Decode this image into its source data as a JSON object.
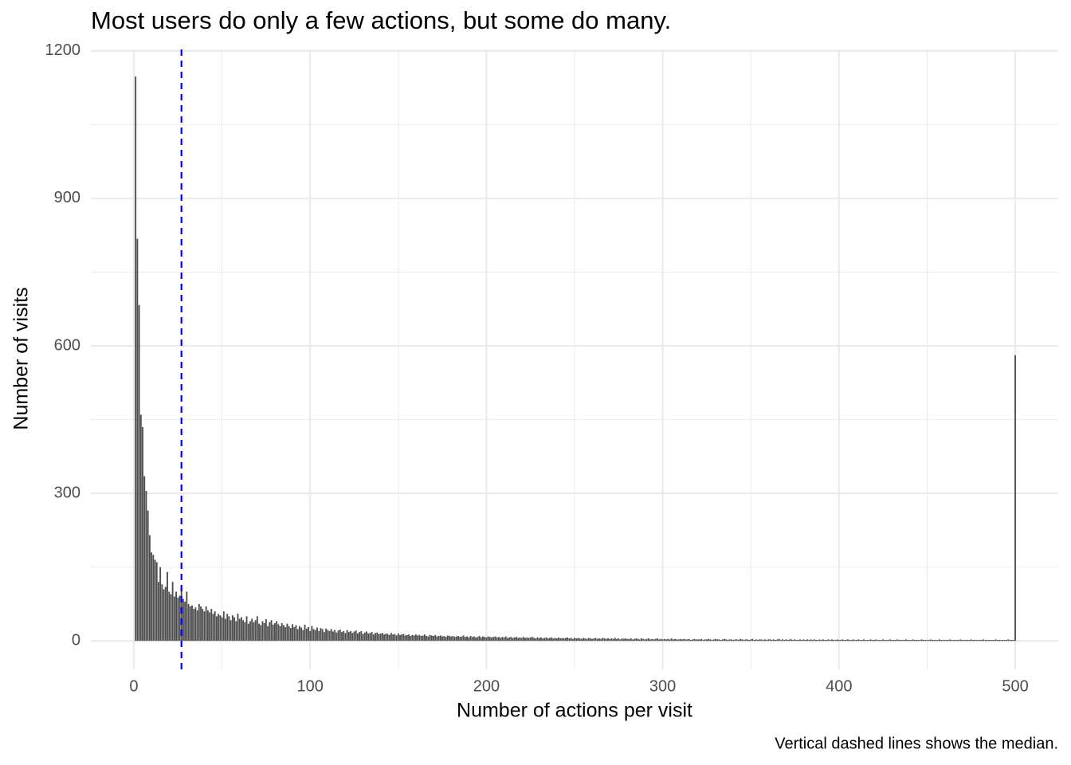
{
  "chart_data": {
    "type": "histogram",
    "title": "Most users do only a few actions, but some do many.",
    "xlabel": "Number of actions per visit",
    "ylabel": "Number of visits",
    "caption": "Vertical dashed lines shows the median.",
    "color": "#4d4d4d",
    "median": 27,
    "median_color": "#0000ff",
    "xlim": [
      -24.4,
      524.4
    ],
    "ylim": [
      -58,
      1203
    ],
    "xticks": [
      0,
      100,
      200,
      300,
      400,
      500
    ],
    "yticks": [
      0,
      300,
      600,
      900,
      1200
    ],
    "xminor": [
      50,
      150,
      250,
      350,
      450
    ],
    "yminor": [
      150,
      450,
      750,
      1050
    ],
    "grid": true,
    "bins": [
      0.5,
      1.5,
      2.5,
      3.5,
      4.5,
      5.5,
      6.5,
      7.5,
      8.5,
      9.5,
      10.5,
      11.5,
      12.5,
      13.5,
      14.5,
      15.5,
      16.5,
      17.5,
      18.5,
      19.5,
      20.5,
      21.5,
      22.5,
      23.5,
      24.5,
      25.5,
      26.5,
      27.5,
      28.5,
      29.5,
      30.5,
      31.5,
      32.5,
      33.5,
      34.5,
      35.5,
      36.5,
      37.5,
      38.5,
      39.5,
      40.5,
      41.5,
      42.5,
      43.5,
      44.5,
      45.5,
      46.5,
      47.5,
      48.5,
      49.5,
      50.5,
      51.5,
      52.5,
      53.5,
      54.5,
      55.5,
      56.5,
      57.5,
      58.5,
      59.5,
      60.5,
      61.5,
      62.5,
      63.5,
      64.5,
      65.5,
      66.5,
      67.5,
      68.5,
      69.5,
      70.5,
      71.5,
      72.5,
      73.5,
      74.5,
      75.5,
      76.5,
      77.5,
      78.5,
      79.5,
      80.5,
      81.5,
      82.5,
      83.5,
      84.5,
      85.5,
      86.5,
      87.5,
      88.5,
      89.5,
      90.5,
      91.5,
      92.5,
      93.5,
      94.5,
      95.5,
      96.5,
      97.5,
      98.5,
      99.5,
      100.5,
      101.5,
      102.5,
      103.5,
      104.5,
      105.5,
      106.5,
      107.5,
      108.5,
      109.5,
      110.5,
      111.5,
      112.5,
      113.5,
      114.5,
      115.5,
      116.5,
      117.5,
      118.5,
      119.5,
      120.5,
      121.5,
      122.5,
      123.5,
      124.5,
      125.5,
      126.5,
      127.5,
      128.5,
      129.5,
      130.5,
      131.5,
      132.5,
      133.5,
      134.5,
      135.5,
      136.5,
      137.5,
      138.5,
      139.5,
      140.5,
      141.5,
      142.5,
      143.5,
      144.5,
      145.5,
      146.5,
      147.5,
      148.5,
      149.5,
      150.5,
      151.5,
      152.5,
      153.5,
      154.5,
      155.5,
      156.5,
      157.5,
      158.5,
      159.5,
      160.5,
      161.5,
      162.5,
      163.5,
      164.5,
      165.5,
      166.5,
      167.5,
      168.5,
      169.5,
      170.5,
      171.5,
      172.5,
      173.5,
      174.5,
      175.5,
      176.5,
      177.5,
      178.5,
      179.5,
      180.5,
      181.5,
      182.5,
      183.5,
      184.5,
      185.5,
      186.5,
      187.5,
      188.5,
      189.5,
      190.5,
      191.5,
      192.5,
      193.5,
      194.5,
      195.5,
      196.5,
      197.5,
      198.5,
      199.5,
      200.5,
      201.5,
      202.5,
      203.5,
      204.5,
      205.5,
      206.5,
      207.5,
      208.5,
      209.5,
      210.5,
      211.5,
      212.5,
      213.5,
      214.5,
      215.5,
      216.5,
      217.5,
      218.5,
      219.5,
      220.5,
      221.5,
      222.5,
      223.5,
      224.5,
      225.5,
      226.5,
      227.5,
      228.5,
      229.5,
      230.5,
      231.5,
      232.5,
      233.5,
      234.5,
      235.5,
      236.5,
      237.5,
      238.5,
      239.5,
      240.5,
      241.5,
      242.5,
      243.5,
      244.5,
      245.5,
      246.5,
      247.5,
      248.5,
      249.5,
      250.5,
      251.5,
      252.5,
      253.5,
      254.5,
      255.5,
      256.5,
      257.5,
      258.5,
      259.5,
      260.5,
      261.5,
      262.5,
      263.5,
      264.5,
      265.5,
      266.5,
      267.5,
      268.5,
      269.5,
      270.5,
      271.5,
      272.5,
      273.5,
      274.5,
      275.5,
      276.5,
      277.5,
      278.5,
      279.5,
      280.5,
      281.5,
      282.5,
      283.5,
      284.5,
      285.5,
      286.5,
      287.5,
      288.5,
      289.5,
      290.5,
      291.5,
      292.5,
      293.5,
      294.5,
      295.5,
      296.5,
      297.5,
      298.5,
      299.5,
      300.5,
      301.5,
      302.5,
      303.5,
      304.5,
      305.5,
      306.5,
      307.5,
      308.5,
      309.5,
      310.5,
      311.5,
      312.5,
      313.5,
      314.5,
      315.5,
      316.5,
      317.5,
      318.5,
      319.5,
      320.5,
      321.5,
      322.5,
      323.5,
      324.5,
      325.5,
      326.5,
      327.5,
      328.5,
      329.5,
      330.5,
      331.5,
      332.5,
      333.5,
      334.5,
      335.5,
      336.5,
      337.5,
      338.5,
      339.5,
      340.5,
      341.5,
      342.5,
      343.5,
      344.5,
      345.5,
      346.5,
      347.5,
      348.5,
      349.5,
      350.5,
      351.5,
      352.5,
      353.5,
      354.5,
      355.5,
      356.5,
      357.5,
      358.5,
      359.5,
      360.5,
      361.5,
      362.5,
      363.5,
      364.5,
      365.5,
      366.5,
      367.5,
      368.5,
      369.5,
      370.5,
      371.5,
      372.5,
      373.5,
      374.5,
      375.5,
      376.5,
      377.5,
      378.5,
      379.5,
      380.5,
      381.5,
      382.5,
      383.5,
      384.5,
      385.5,
      386.5,
      387.5,
      388.5,
      389.5,
      390.5,
      391.5,
      392.5,
      393.5,
      394.5,
      395.5,
      396.5,
      397.5,
      398.5,
      399.5,
      400.5,
      401.5,
      402.5,
      403.5,
      404.5,
      405.5,
      406.5,
      407.5,
      408.5,
      409.5,
      410.5,
      411.5,
      412.5,
      413.5,
      414.5,
      415.5,
      416.5,
      417.5,
      418.5,
      419.5,
      420.5,
      421.5,
      422.5,
      423.5,
      424.5,
      425.5,
      426.5,
      427.5,
      428.5,
      429.5,
      430.5,
      431.5,
      432.5,
      433.5,
      434.5,
      435.5,
      436.5,
      437.5,
      438.5,
      439.5,
      440.5,
      441.5,
      442.5,
      443.5,
      444.5,
      445.5,
      446.5,
      447.5,
      448.5,
      449.5,
      450.5,
      451.5,
      452.5,
      453.5,
      454.5,
      455.5,
      456.5,
      457.5,
      458.5,
      459.5,
      460.5,
      461.5,
      462.5,
      463.5,
      464.5,
      465.5,
      466.5,
      467.5,
      468.5,
      469.5,
      470.5,
      471.5,
      472.5,
      473.5,
      474.5,
      475.5,
      476.5,
      477.5,
      478.5,
      479.5,
      480.5,
      481.5,
      482.5,
      483.5,
      484.5,
      485.5,
      486.5,
      487.5,
      488.5,
      489.5,
      490.5,
      491.5,
      492.5,
      493.5,
      494.5,
      495.5,
      496.5,
      497.5,
      498.5,
      499.5,
      500.5
    ],
    "counts": [
      1148,
      818,
      683,
      460,
      435,
      335,
      305,
      265,
      215,
      180,
      175,
      165,
      160,
      120,
      150,
      115,
      105,
      110,
      140,
      100,
      95,
      120,
      90,
      100,
      88,
      92,
      110,
      85,
      80,
      100,
      75,
      70,
      72,
      65,
      68,
      62,
      75,
      70,
      65,
      60,
      70,
      62,
      58,
      65,
      55,
      60,
      50,
      55,
      52,
      48,
      60,
      45,
      55,
      50,
      42,
      52,
      48,
      40,
      55,
      45,
      48,
      42,
      38,
      50,
      35,
      40,
      45,
      38,
      42,
      50,
      35,
      32,
      40,
      36,
      44,
      30,
      38,
      42,
      33,
      36,
      40,
      34,
      30,
      36,
      32,
      28,
      35,
      30,
      26,
      34,
      28,
      32,
      24,
      30,
      27,
      22,
      33,
      25,
      28,
      20,
      30,
      24,
      22,
      27,
      20,
      26,
      24,
      18,
      25,
      22,
      20,
      24,
      19,
      22,
      17,
      21,
      23,
      18,
      20,
      16,
      22,
      18,
      20,
      16,
      19,
      21,
      15,
      18,
      20,
      14,
      17,
      19,
      15,
      16,
      18,
      13,
      16,
      17,
      14,
      15,
      16,
      13,
      15,
      14,
      12,
      16,
      13,
      14,
      11,
      15,
      12,
      13,
      14,
      11,
      12,
      13,
      10,
      12,
      11,
      13,
      11,
      12,
      10,
      11,
      13,
      10,
      9,
      12,
      11,
      10,
      12,
      9,
      10,
      11,
      9,
      10,
      8,
      11,
      10,
      9,
      10,
      8,
      9,
      10,
      8,
      9,
      11,
      8,
      9,
      7,
      10,
      8,
      9,
      7,
      8,
      10,
      7,
      9,
      8,
      7,
      9,
      8,
      7,
      8,
      9,
      7,
      8,
      6,
      8,
      7,
      9,
      6,
      7,
      8,
      6,
      7,
      8,
      6,
      7,
      6,
      8,
      6,
      7,
      6,
      7,
      8,
      6,
      5,
      7,
      6,
      7,
      5,
      6,
      7,
      5,
      6,
      7,
      5,
      6,
      5,
      7,
      5,
      6,
      5,
      6,
      7,
      5,
      6,
      4,
      6,
      5,
      6,
      5,
      4,
      6,
      5,
      4,
      6,
      5,
      4,
      5,
      6,
      4,
      5,
      4,
      6,
      5,
      4,
      5,
      4,
      5,
      4,
      6,
      4,
      5,
      3,
      5,
      4,
      5,
      4,
      4,
      5,
      3,
      4,
      5,
      4,
      3,
      5,
      4,
      3,
      4,
      5,
      3,
      4,
      3,
      4,
      5,
      3,
      4,
      3,
      4,
      3,
      4,
      3,
      5,
      3,
      4,
      3,
      3,
      4,
      3,
      4,
      3,
      3,
      4,
      2,
      3,
      4,
      3,
      3,
      3,
      4,
      2,
      3,
      3,
      4,
      3,
      2,
      3,
      4,
      3,
      3,
      2,
      3,
      4,
      3,
      2,
      3,
      3,
      2,
      3,
      3,
      2,
      4,
      3,
      2,
      3,
      3,
      2,
      3,
      4,
      2,
      3,
      2,
      3,
      3,
      2,
      3,
      2,
      3,
      3,
      2,
      3,
      2,
      3,
      4,
      2,
      3,
      2,
      3,
      2,
      3,
      3,
      2,
      3,
      2,
      2,
      3,
      2,
      3,
      2,
      3,
      2,
      3,
      2,
      3,
      2,
      2,
      3,
      2,
      3,
      2,
      2,
      3,
      2,
      3,
      2,
      2,
      3,
      2,
      2,
      3,
      2,
      2,
      3,
      2,
      2,
      3,
      2,
      2,
      3,
      2,
      2,
      3,
      2,
      2,
      2,
      3,
      2,
      2,
      3,
      2,
      2,
      2,
      3,
      2,
      2,
      2,
      3,
      2,
      2,
      2,
      3,
      2,
      2,
      2,
      2,
      3,
      2,
      2,
      2,
      3,
      2,
      2,
      2,
      2,
      3,
      2,
      2,
      2,
      2,
      3,
      2,
      2,
      2,
      2,
      3,
      2,
      2,
      2,
      2,
      2,
      3,
      2,
      2,
      2,
      2,
      2,
      3,
      2,
      2,
      2,
      2,
      2,
      3,
      2,
      2,
      2,
      2,
      2,
      2,
      3,
      2,
      2,
      2,
      2,
      2,
      2,
      3,
      2,
      2,
      2,
      2,
      2,
      2,
      3,
      2,
      2,
      2,
      581
    ]
  }
}
